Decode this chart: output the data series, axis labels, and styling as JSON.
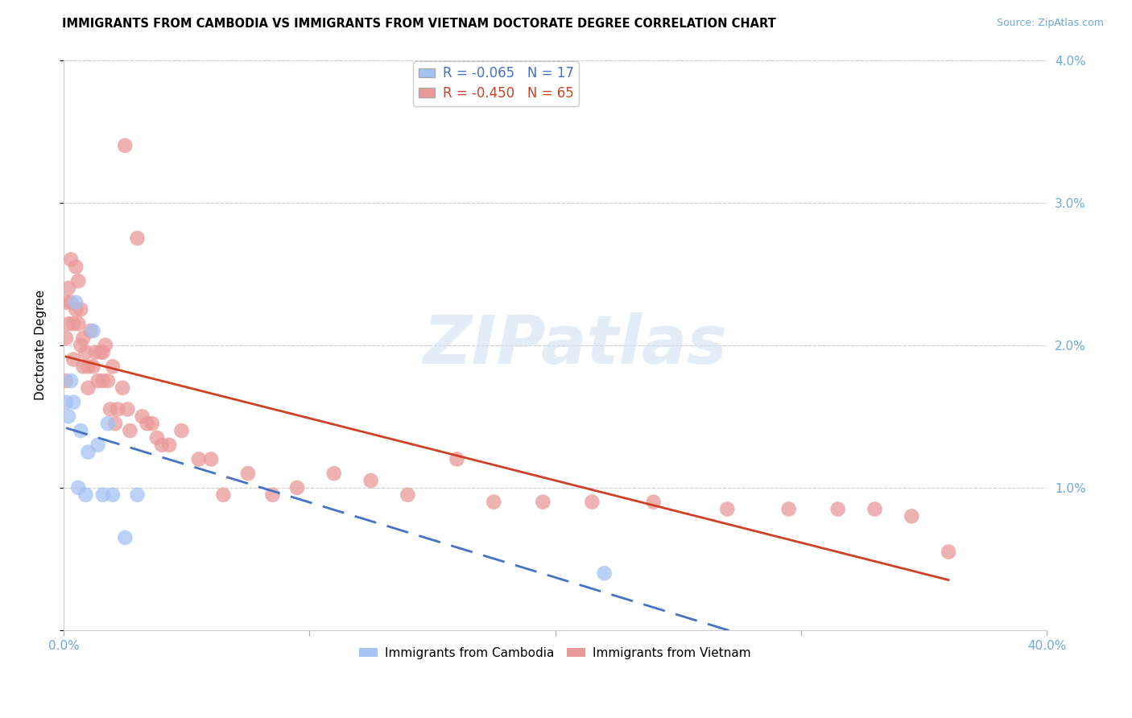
{
  "title": "IMMIGRANTS FROM CAMBODIA VS IMMIGRANTS FROM VIETNAM DOCTORATE DEGREE CORRELATION CHART",
  "source": "Source: ZipAtlas.com",
  "ylabel": "Doctorate Degree",
  "xlim": [
    0.0,
    0.4
  ],
  "ylim": [
    0.0,
    0.04
  ],
  "xticks": [
    0.0,
    0.1,
    0.2,
    0.3,
    0.4
  ],
  "yticks": [
    0.0,
    0.01,
    0.02,
    0.03,
    0.04
  ],
  "right_tick_labels": [
    "",
    "1.0%",
    "2.0%",
    "3.0%",
    "4.0%"
  ],
  "background_color": "#ffffff",
  "grid_color": "#cccccc",
  "axis_color": "#6fa8dc",
  "cambodia_color": "#a4c2f4",
  "vietnam_color": "#ea9999",
  "cambodia_line_color": "#4472c4",
  "vietnam_line_color": "#cc4125",
  "cambodia_R": -0.065,
  "cambodia_N": 17,
  "vietnam_R": -0.45,
  "vietnam_N": 65,
  "watermark": "ZIPatlas",
  "legend_labels": [
    "Immigrants from Cambodia",
    "Immigrants from Vietnam"
  ],
  "cambodia_x": [
    0.001,
    0.002,
    0.003,
    0.004,
    0.005,
    0.006,
    0.007,
    0.009,
    0.01,
    0.012,
    0.014,
    0.016,
    0.018,
    0.02,
    0.025,
    0.03,
    0.22
  ],
  "cambodia_y": [
    0.016,
    0.015,
    0.0175,
    0.016,
    0.023,
    0.01,
    0.014,
    0.0095,
    0.0125,
    0.021,
    0.013,
    0.0095,
    0.0145,
    0.0095,
    0.0065,
    0.0095,
    0.004
  ],
  "vietnam_x": [
    0.001,
    0.001,
    0.001,
    0.002,
    0.002,
    0.003,
    0.003,
    0.004,
    0.004,
    0.005,
    0.005,
    0.006,
    0.006,
    0.007,
    0.007,
    0.008,
    0.008,
    0.009,
    0.01,
    0.01,
    0.011,
    0.012,
    0.013,
    0.014,
    0.015,
    0.016,
    0.016,
    0.017,
    0.018,
    0.019,
    0.02,
    0.021,
    0.022,
    0.024,
    0.025,
    0.026,
    0.027,
    0.03,
    0.032,
    0.034,
    0.036,
    0.038,
    0.04,
    0.043,
    0.048,
    0.055,
    0.06,
    0.065,
    0.075,
    0.085,
    0.095,
    0.11,
    0.125,
    0.14,
    0.16,
    0.175,
    0.195,
    0.215,
    0.24,
    0.27,
    0.295,
    0.315,
    0.33,
    0.345,
    0.36
  ],
  "vietnam_y": [
    0.023,
    0.0205,
    0.0175,
    0.024,
    0.0215,
    0.026,
    0.023,
    0.0215,
    0.019,
    0.0255,
    0.0225,
    0.0245,
    0.0215,
    0.0225,
    0.02,
    0.0205,
    0.0185,
    0.0195,
    0.0185,
    0.017,
    0.021,
    0.0185,
    0.0195,
    0.0175,
    0.0195,
    0.0195,
    0.0175,
    0.02,
    0.0175,
    0.0155,
    0.0185,
    0.0145,
    0.0155,
    0.017,
    0.034,
    0.0155,
    0.014,
    0.0275,
    0.015,
    0.0145,
    0.0145,
    0.0135,
    0.013,
    0.013,
    0.014,
    0.012,
    0.012,
    0.0095,
    0.011,
    0.0095,
    0.01,
    0.011,
    0.0105,
    0.0095,
    0.012,
    0.009,
    0.009,
    0.009,
    0.009,
    0.0085,
    0.0085,
    0.0085,
    0.0085,
    0.008,
    0.0055
  ]
}
